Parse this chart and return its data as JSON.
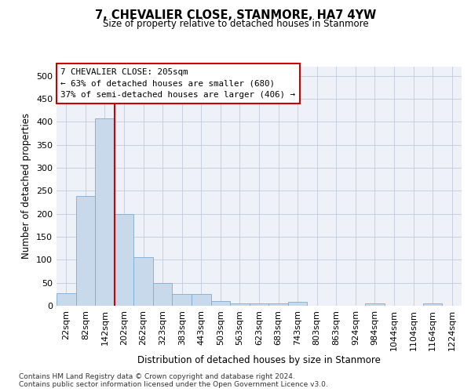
{
  "title": "7, CHEVALIER CLOSE, STANMORE, HA7 4YW",
  "subtitle": "Size of property relative to detached houses in Stanmore",
  "xlabel": "Distribution of detached houses by size in Stanmore",
  "ylabel": "Number of detached properties",
  "bar_color": "#c9d9ec",
  "bar_edge_color": "#7aadd4",
  "bin_labels": [
    "22sqm",
    "82sqm",
    "142sqm",
    "202sqm",
    "262sqm",
    "323sqm",
    "383sqm",
    "443sqm",
    "503sqm",
    "563sqm",
    "623sqm",
    "683sqm",
    "743sqm",
    "803sqm",
    "863sqm",
    "924sqm",
    "984sqm",
    "1044sqm",
    "1104sqm",
    "1164sqm",
    "1224sqm"
  ],
  "bar_values": [
    27,
    238,
    407,
    200,
    106,
    49,
    25,
    25,
    10,
    5,
    5,
    5,
    8,
    0,
    0,
    0,
    5,
    0,
    0,
    5,
    0
  ],
  "ylim": [
    0,
    520
  ],
  "yticks": [
    0,
    50,
    100,
    150,
    200,
    250,
    300,
    350,
    400,
    450,
    500
  ],
  "vline_position": 2.5,
  "annotation_line1": "7 CHEVALIER CLOSE: 205sqm",
  "annotation_line2": "← 63% of detached houses are smaller (680)",
  "annotation_line3": "37% of semi-detached houses are larger (406) →",
  "footnote1": "Contains HM Land Registry data © Crown copyright and database right 2024.",
  "footnote2": "Contains public sector information licensed under the Open Government Licence v3.0.",
  "background_color": "#eef2f8",
  "grid_color": "#c8d0e0",
  "vline_color": "#cc0000",
  "annotation_box_color": "#cc0000"
}
